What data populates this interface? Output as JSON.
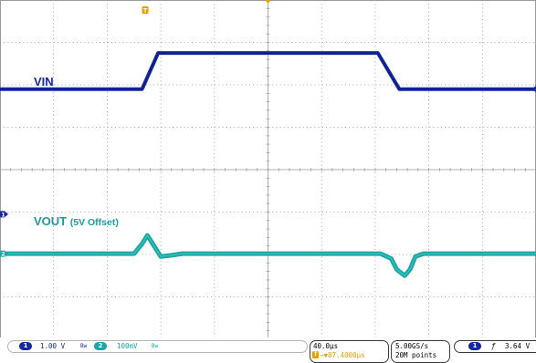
{
  "trace_labels": {
    "vin": "VIN",
    "vout_main": "VOUT",
    "vout_note": "(5V Offset)"
  },
  "markers": {
    "trigger_top": "T",
    "ch1_left": "1",
    "ch2_left": "2",
    "right_arrow": "◂"
  },
  "status": {
    "ch1_badge": "1",
    "ch1_scale": "1.00 V",
    "ch1_bw": "Bw",
    "ch2_badge": "2",
    "ch2_scale": "100mV",
    "ch2_bw": "Bw",
    "timebase": "40.0µs",
    "trigger_pos_icon": "T",
    "trigger_pos": "→▼87.4000µs",
    "sample_rate": "5.00GS/s",
    "record_length": "20M points",
    "trig_source": "1",
    "trig_slope": "ƒ",
    "trig_level": "3.64 V"
  },
  "colors": {
    "ch1": "#1428a0",
    "ch2": "#1aa6a6",
    "grid": "#8c8c8c",
    "trigger": "#e8a000"
  },
  "chart_data": {
    "type": "line",
    "title": "",
    "xlabel": "",
    "ylabel": "",
    "x_divisions": 10,
    "y_divisions": 8,
    "series": [
      {
        "name": "VIN",
        "x": [
          0,
          2.65,
          2.95,
          7.05,
          7.45,
          10
        ],
        "y": [
          1.9,
          1.9,
          2.75,
          2.75,
          1.9,
          1.9
        ]
      },
      {
        "name": "VOUT (5V Offset)",
        "x": [
          0,
          2.5,
          2.65,
          2.75,
          2.85,
          3.0,
          3.2,
          3.4,
          7.1,
          7.3,
          7.4,
          7.55,
          7.65,
          7.75,
          7.9,
          10
        ],
        "y": [
          -1.98,
          -1.98,
          -1.75,
          -1.55,
          -1.75,
          -2.05,
          -2.02,
          -1.98,
          -1.98,
          -2.1,
          -2.35,
          -2.5,
          -2.35,
          -2.05,
          -1.98,
          -1.98
        ]
      }
    ]
  }
}
